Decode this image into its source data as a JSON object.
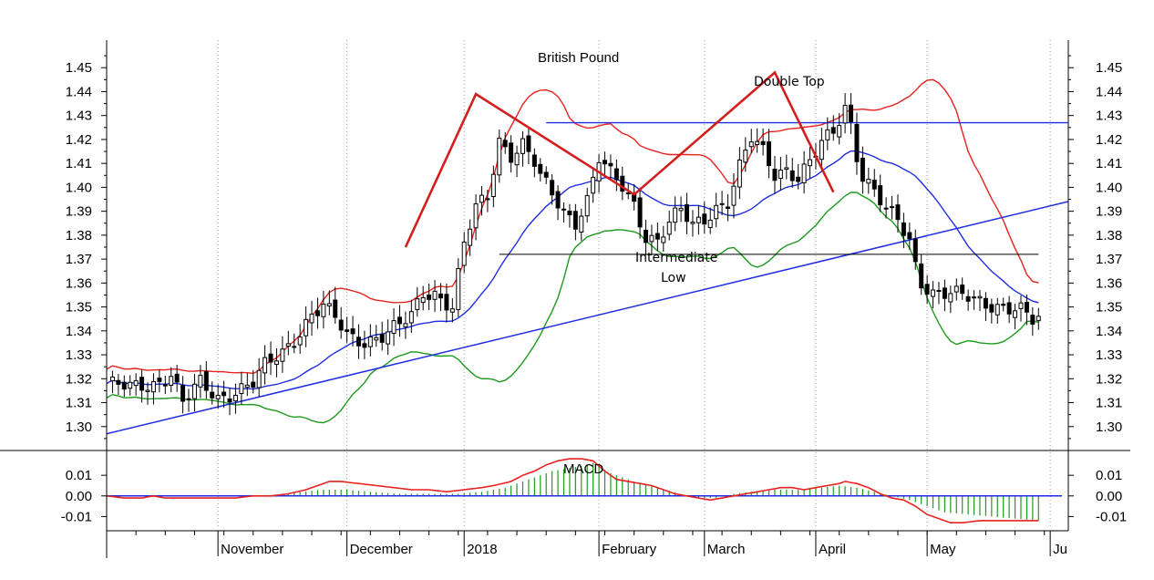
{
  "chart_data": {
    "type": "candlestick",
    "title": "British Pound",
    "price_axis": {
      "min": 1.29,
      "max": 1.46,
      "ticks": [
        "1.45",
        "1.44",
        "1.43",
        "1.42",
        "1.41",
        "1.40",
        "1.39",
        "1.38",
        "1.37",
        "1.36",
        "1.35",
        "1.34",
        "1.33",
        "1.32",
        "1.31",
        "1.30"
      ]
    },
    "macd_axis": {
      "min": -0.016,
      "max": 0.022,
      "ticks": [
        "0.01",
        "0.00",
        "-0.01"
      ]
    },
    "months": [
      {
        "label": "November",
        "index": 19
      },
      {
        "label": "December",
        "index": 41
      },
      {
        "label": "2018",
        "index": 61
      },
      {
        "label": "February",
        "index": 84
      },
      {
        "label": "March",
        "index": 102
      },
      {
        "label": "April",
        "index": 121
      },
      {
        "label": "May",
        "index": 140
      },
      {
        "label": "Ju",
        "index": 161
      }
    ],
    "period_count": 164,
    "annotations": {
      "double_top": "Double Top",
      "intermediate": "Intermediate",
      "low": "Low",
      "macd": "MACD"
    },
    "colors": {
      "upper_band": "#e8221e",
      "middle_band": "#1f2ee0",
      "lower_band": "#1e9a1e",
      "trendlines": "#1f2ee0",
      "pattern": "#d41e1e",
      "histogram": "#1e9a1e",
      "macd_line": "#e8221e",
      "zero_line": "#1f2ee0"
    },
    "resistance": {
      "level": 1.427,
      "from": 75,
      "to": 164
    },
    "intermediate_low": {
      "level": 1.372,
      "from": 67,
      "to": 159
    },
    "support_trendline": {
      "from": [
        0,
        1.297
      ],
      "to": [
        164,
        1.394
      ]
    },
    "pattern_polyline": [
      [
        51,
        1.375
      ],
      [
        63,
        1.439
      ],
      [
        90,
        1.397
      ],
      [
        114,
        1.448
      ],
      [
        124,
        1.398
      ]
    ],
    "key_close_points": [
      [
        0,
        1.318
      ],
      [
        4,
        1.316
      ],
      [
        8,
        1.318
      ],
      [
        11,
        1.322
      ],
      [
        13,
        1.31
      ],
      [
        16,
        1.318
      ],
      [
        19,
        1.312
      ],
      [
        22,
        1.315
      ],
      [
        25,
        1.318
      ],
      [
        27,
        1.325
      ],
      [
        30,
        1.331
      ],
      [
        33,
        1.34
      ],
      [
        35,
        1.347
      ],
      [
        37,
        1.35
      ],
      [
        39,
        1.345
      ],
      [
        41,
        1.338
      ],
      [
        44,
        1.336
      ],
      [
        47,
        1.338
      ],
      [
        50,
        1.342
      ],
      [
        52,
        1.346
      ],
      [
        54,
        1.356
      ],
      [
        56,
        1.356
      ],
      [
        59,
        1.35
      ],
      [
        61,
        1.376
      ],
      [
        63,
        1.391
      ],
      [
        65,
        1.396
      ],
      [
        67,
        1.42
      ],
      [
        69,
        1.414
      ],
      [
        71,
        1.418
      ],
      [
        73,
        1.41
      ],
      [
        74,
        1.404
      ],
      [
        76,
        1.397
      ],
      [
        78,
        1.39
      ],
      [
        80,
        1.386
      ],
      [
        82,
        1.395
      ],
      [
        84,
        1.412
      ],
      [
        86,
        1.405
      ],
      [
        88,
        1.4
      ],
      [
        90,
        1.393
      ],
      [
        92,
        1.38
      ],
      [
        94,
        1.378
      ],
      [
        96,
        1.385
      ],
      [
        98,
        1.39
      ],
      [
        100,
        1.384
      ],
      [
        102,
        1.387
      ],
      [
        104,
        1.392
      ],
      [
        106,
        1.394
      ],
      [
        108,
        1.408
      ],
      [
        110,
        1.42
      ],
      [
        112,
        1.415
      ],
      [
        114,
        1.406
      ],
      [
        116,
        1.408
      ],
      [
        118,
        1.404
      ],
      [
        120,
        1.41
      ],
      [
        122,
        1.418
      ],
      [
        124,
        1.423
      ],
      [
        126,
        1.434
      ],
      [
        127,
        1.427
      ],
      [
        128,
        1.414
      ],
      [
        129,
        1.405
      ],
      [
        131,
        1.398
      ],
      [
        133,
        1.39
      ],
      [
        135,
        1.386
      ],
      [
        137,
        1.378
      ],
      [
        138,
        1.368
      ],
      [
        139,
        1.361
      ],
      [
        141,
        1.356
      ],
      [
        144,
        1.355
      ],
      [
        147,
        1.354
      ],
      [
        150,
        1.352
      ],
      [
        153,
        1.35
      ],
      [
        156,
        1.348
      ],
      [
        158,
        1.344
      ],
      [
        159,
        1.345
      ]
    ],
    "macd_line_points": [
      [
        0,
        0.0
      ],
      [
        3,
        -0.001
      ],
      [
        6,
        -0.001
      ],
      [
        8,
        0.0
      ],
      [
        10,
        -0.001
      ],
      [
        13,
        -0.001
      ],
      [
        16,
        -0.001
      ],
      [
        19,
        -0.001
      ],
      [
        22,
        -0.001
      ],
      [
        25,
        0.0
      ],
      [
        28,
        0.0
      ],
      [
        31,
        0.001
      ],
      [
        34,
        0.003
      ],
      [
        36,
        0.005
      ],
      [
        38,
        0.007
      ],
      [
        40,
        0.007
      ],
      [
        43,
        0.006
      ],
      [
        46,
        0.005
      ],
      [
        49,
        0.004
      ],
      [
        52,
        0.003
      ],
      [
        55,
        0.003
      ],
      [
        58,
        0.002
      ],
      [
        61,
        0.003
      ],
      [
        64,
        0.004
      ],
      [
        66,
        0.005
      ],
      [
        69,
        0.007
      ],
      [
        71,
        0.01
      ],
      [
        73,
        0.012
      ],
      [
        75,
        0.015
      ],
      [
        77,
        0.017
      ],
      [
        79,
        0.018
      ],
      [
        81,
        0.018
      ],
      [
        83,
        0.017
      ],
      [
        85,
        0.012
      ],
      [
        87,
        0.008
      ],
      [
        89,
        0.007
      ],
      [
        91,
        0.006
      ],
      [
        93,
        0.005
      ],
      [
        95,
        0.003
      ],
      [
        97,
        0.001
      ],
      [
        99,
        0.0
      ],
      [
        101,
        -0.001
      ],
      [
        103,
        -0.002
      ],
      [
        105,
        -0.001
      ],
      [
        107,
        0.0
      ],
      [
        109,
        0.001
      ],
      [
        111,
        0.002
      ],
      [
        113,
        0.003
      ],
      [
        115,
        0.004
      ],
      [
        117,
        0.004
      ],
      [
        119,
        0.003
      ],
      [
        121,
        0.004
      ],
      [
        123,
        0.005
      ],
      [
        125,
        0.006
      ],
      [
        126,
        0.007
      ],
      [
        128,
        0.006
      ],
      [
        130,
        0.004
      ],
      [
        132,
        0.001
      ],
      [
        134,
        -0.001
      ],
      [
        136,
        -0.002
      ],
      [
        138,
        -0.005
      ],
      [
        140,
        -0.009
      ],
      [
        142,
        -0.011
      ],
      [
        144,
        -0.013
      ],
      [
        146,
        -0.013
      ],
      [
        149,
        -0.012
      ],
      [
        152,
        -0.012
      ],
      [
        155,
        -0.012
      ],
      [
        159,
        -0.012
      ]
    ],
    "macd_hist_points": [
      [
        0,
        -0.0005
      ],
      [
        10,
        0.0001
      ],
      [
        20,
        0.0001
      ],
      [
        28,
        0.0002
      ],
      [
        33,
        0.002
      ],
      [
        37,
        0.003
      ],
      [
        41,
        0.003
      ],
      [
        45,
        0.002
      ],
      [
        50,
        0.001
      ],
      [
        55,
        0.001
      ],
      [
        60,
        0.001
      ],
      [
        64,
        0.002
      ],
      [
        68,
        0.004
      ],
      [
        72,
        0.008
      ],
      [
        76,
        0.012
      ],
      [
        80,
        0.014
      ],
      [
        83,
        0.016
      ],
      [
        86,
        0.011
      ],
      [
        90,
        0.007
      ],
      [
        94,
        0.004
      ],
      [
        98,
        0.001
      ],
      [
        101,
        -0.001
      ],
      [
        104,
        -0.001
      ],
      [
        107,
        0.001
      ],
      [
        110,
        0.002
      ],
      [
        114,
        0.003
      ],
      [
        118,
        0.003
      ],
      [
        122,
        0.004
      ],
      [
        125,
        0.005
      ],
      [
        128,
        0.004
      ],
      [
        131,
        0.002
      ],
      [
        134,
        0.0
      ],
      [
        137,
        -0.002
      ],
      [
        140,
        -0.005
      ],
      [
        143,
        -0.008
      ],
      [
        147,
        -0.009
      ],
      [
        151,
        -0.01
      ],
      [
        155,
        -0.011
      ],
      [
        159,
        -0.012
      ]
    ]
  }
}
